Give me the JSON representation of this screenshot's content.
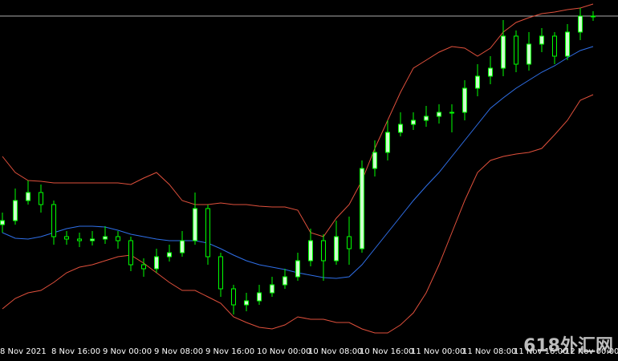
{
  "chart_data": {
    "type": "candlestick",
    "categories": [
      "8 Nov 2021",
      null,
      null,
      null,
      "8 Nov 16:00",
      null,
      null,
      null,
      "9 Nov 00:00",
      null,
      null,
      null,
      "9 Nov 08:00",
      null,
      null,
      null,
      "9 Nov 16:00",
      null,
      null,
      null,
      "10 Nov 00:00",
      null,
      null,
      null,
      "10 Nov 08:00",
      null,
      null,
      null,
      "10 Nov 16:00",
      null,
      null,
      null,
      "11 Nov 00:00",
      null,
      null,
      null,
      "11 Nov 08:00",
      null,
      null,
      null,
      "11 Nov 16:00",
      null,
      null,
      null,
      "12 Nov 00:00",
      null,
      null
    ],
    "open": [
      170,
      175,
      200,
      210,
      195,
      155,
      152,
      150,
      152,
      155,
      150,
      120,
      115,
      130,
      135,
      150,
      190,
      130,
      90,
      70,
      75,
      85,
      95,
      105,
      125,
      150,
      125,
      155,
      140,
      240,
      260,
      285,
      295,
      300,
      305,
      310,
      310,
      340,
      355,
      365,
      405,
      370,
      395,
      405,
      380,
      410,
      430
    ],
    "high": [
      185,
      215,
      225,
      220,
      200,
      162,
      160,
      162,
      168,
      162,
      155,
      128,
      140,
      145,
      162,
      210,
      195,
      135,
      95,
      85,
      95,
      105,
      115,
      135,
      165,
      158,
      175,
      180,
      250,
      275,
      300,
      310,
      310,
      318,
      320,
      320,
      350,
      370,
      380,
      425,
      412,
      410,
      415,
      410,
      420,
      440,
      436
    ],
    "low": [
      160,
      170,
      195,
      185,
      145,
      145,
      142,
      144,
      146,
      140,
      112,
      105,
      110,
      124,
      130,
      145,
      120,
      80,
      58,
      62,
      70,
      80,
      90,
      100,
      118,
      100,
      120,
      120,
      135,
      230,
      250,
      280,
      288,
      292,
      296,
      285,
      300,
      330,
      345,
      355,
      360,
      362,
      385,
      370,
      375,
      400,
      424
    ],
    "close": [
      175,
      200,
      210,
      195,
      155,
      152,
      150,
      152,
      155,
      150,
      120,
      115,
      130,
      135,
      150,
      190,
      130,
      90,
      70,
      75,
      85,
      95,
      105,
      125,
      150,
      125,
      155,
      140,
      240,
      260,
      285,
      295,
      300,
      305,
      310,
      310,
      340,
      355,
      365,
      405,
      370,
      395,
      405,
      380,
      410,
      430,
      430
    ],
    "up_color": "#ccffcc",
    "down_color": "#000000",
    "candle_outline": "#00ff00",
    "series": [
      {
        "color": "#e0503c",
        "values": [
          255,
          235,
          225,
          224,
          222,
          222,
          222,
          222,
          222,
          222,
          220,
          228,
          235,
          220,
          200,
          195,
          195,
          197,
          195,
          195,
          193,
          192,
          192,
          188,
          160,
          155,
          178,
          195,
          225,
          265,
          300,
          335,
          365,
          375,
          385,
          392,
          390,
          380,
          390,
          410,
          422,
          428,
          433,
          435,
          438,
          440,
          445
        ]
      },
      {
        "color": "#2f6fe8",
        "values": [
          160,
          153,
          152,
          155,
          160,
          165,
          168,
          168,
          167,
          163,
          158,
          155,
          152,
          150,
          150,
          150,
          147,
          140,
          132,
          125,
          120,
          117,
          114,
          110,
          107,
          104,
          103,
          105,
          120,
          140,
          160,
          180,
          200,
          218,
          235,
          255,
          275,
          295,
          315,
          328,
          340,
          350,
          360,
          368,
          378,
          387,
          392
        ]
      },
      {
        "color": "#e0503c",
        "values": [
          65,
          78,
          85,
          88,
          98,
          110,
          117,
          120,
          125,
          130,
          132,
          122,
          110,
          98,
          88,
          88,
          80,
          72,
          55,
          48,
          42,
          40,
          45,
          55,
          52,
          52,
          48,
          48,
          40,
          35,
          35,
          45,
          60,
          85,
          120,
          160,
          200,
          235,
          250,
          255,
          258,
          260,
          265,
          282,
          300,
          325,
          332
        ]
      }
    ],
    "price_line": 430,
    "price_line_color": "#aaaaaa",
    "ylim": [
      0,
      450
    ],
    "watermark": "618外汇网"
  }
}
